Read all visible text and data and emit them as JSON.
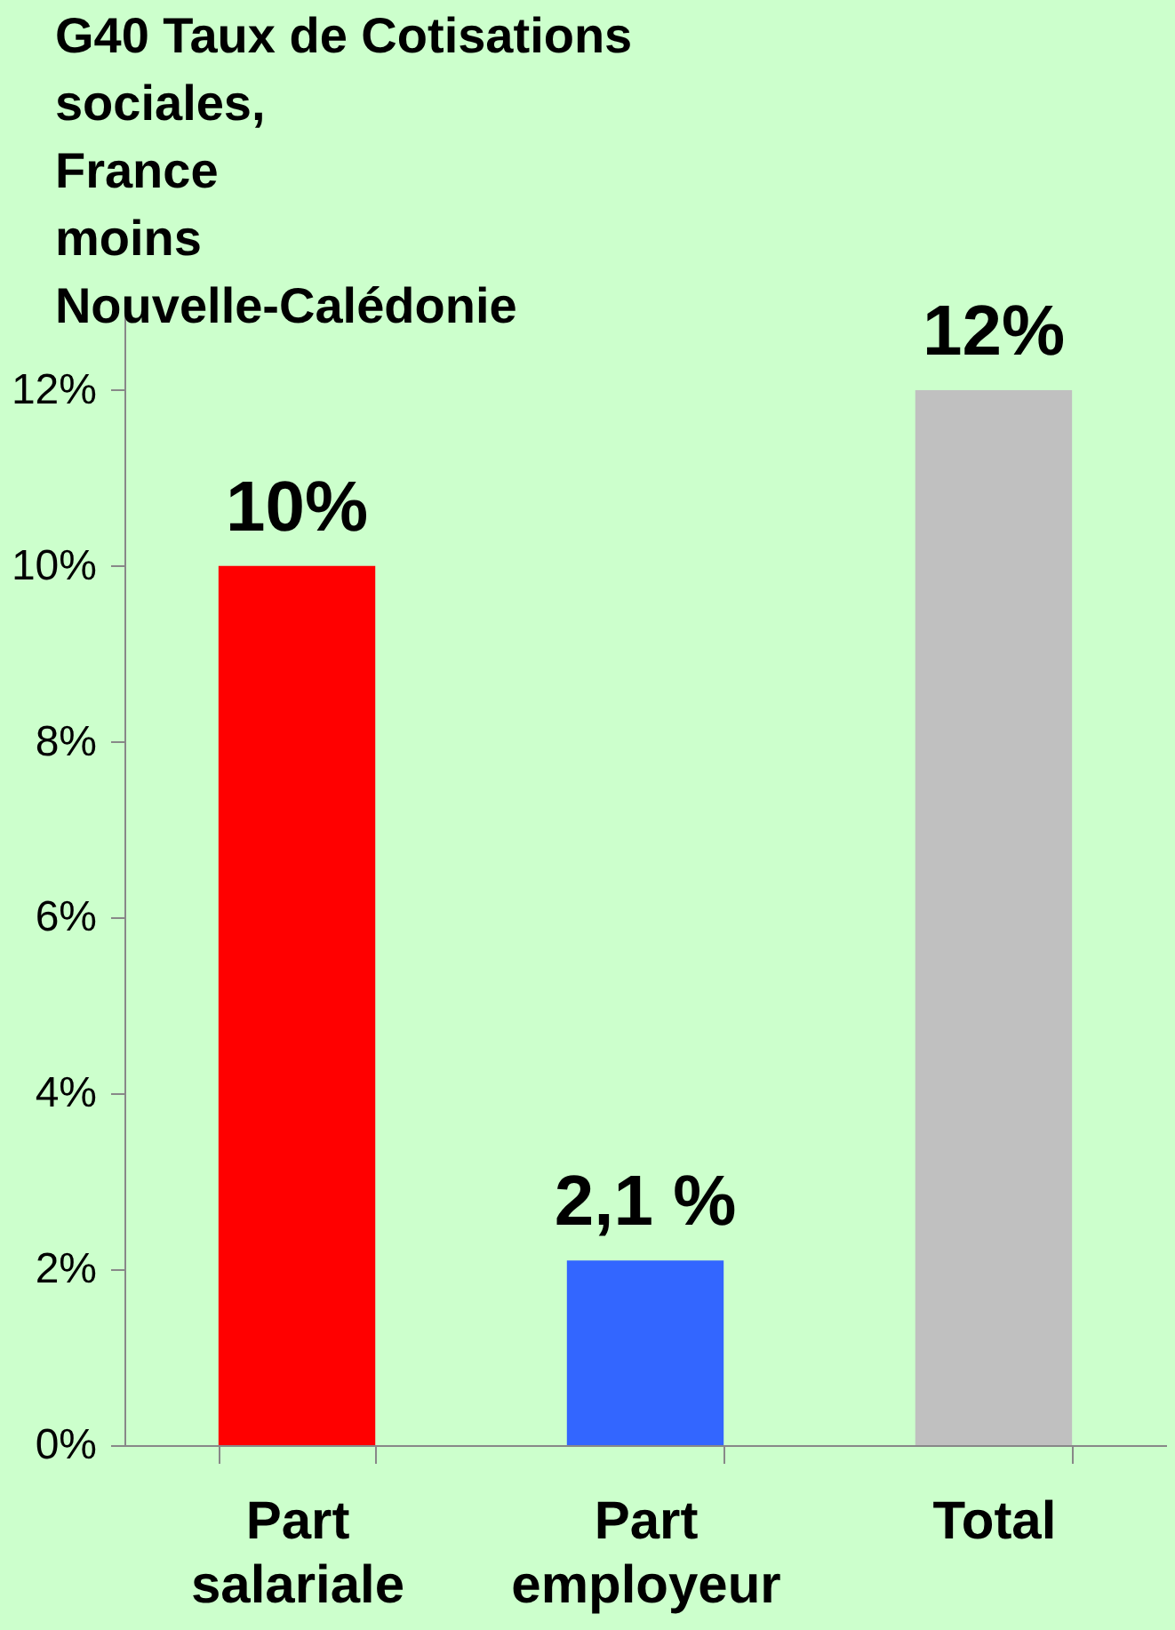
{
  "chart_data": {
    "type": "bar",
    "title": "G40 Taux de Cotisations\nsociales,\nFrance\nmoins\nNouvelle-Calédonie",
    "categories": [
      "Part\nsalariale",
      "Part\nemployeur",
      "Total"
    ],
    "values": [
      10,
      2.1,
      12
    ],
    "colors": [
      "#ff0000",
      "#3366ff",
      "#c0c0c0"
    ],
    "value_labels": [
      "10%",
      "2,1 %",
      "12%"
    ],
    "ylim": [
      0,
      13
    ],
    "yticks": [
      {
        "value": 0,
        "label": "0%"
      },
      {
        "value": 2,
        "label": "2%"
      },
      {
        "value": 4,
        "label": "4%"
      },
      {
        "value": 6,
        "label": "6%"
      },
      {
        "value": 8,
        "label": "8%"
      },
      {
        "value": 10,
        "label": "10%"
      },
      {
        "value": 12,
        "label": "12%"
      }
    ],
    "grid": false
  }
}
